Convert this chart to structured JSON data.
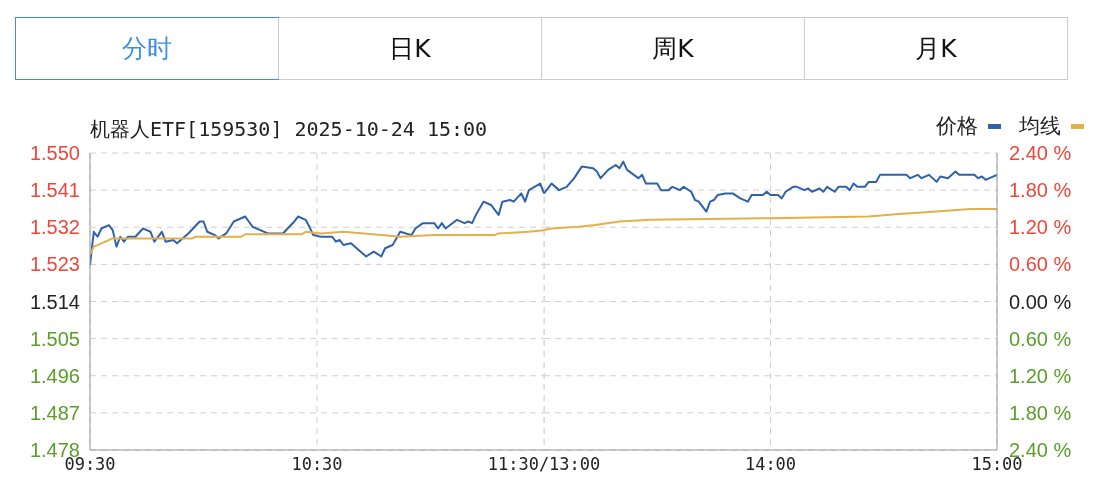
{
  "chart_data": [
    {
      "type": "line",
      "title": "机器人ETF[159530] 2025-10-24 15:00",
      "annotations": [
        "分时",
        "日K",
        "周K",
        "月K"
      ],
      "xlim": [
        "2025-10-24T09:30",
        "2025-10-24T11:30"
      ],
      "xticks": [
        {
          "value": "2025-10-24T09:30",
          "label": "09:30"
        },
        {
          "value": "2025-10-24T10:30",
          "label": "10:30"
        },
        {
          "value": "2025-10-24T11:30",
          "label": "11:30/13:00"
        }
      ],
      "ylim": [
        1.478,
        1.55
      ],
      "yticks": [
        1.478,
        1.487,
        1.496,
        1.505,
        1.514,
        1.523,
        1.532,
        1.541,
        {
          "value": 1.55,
          "label": "1.550"
        }
      ],
      "grid": true,
      "marker": "none",
      "line_style": "solid",
      "series": [
        {
          "color": "#2f62a8",
          "x": [
            "2025-10-24T09:30",
            "2025-10-24T09:31",
            "2025-10-24T09:32",
            "2025-10-24T09:33",
            "2025-10-24T09:35",
            "2025-10-24T09:36",
            "2025-10-24T09:37",
            "2025-10-24T09:38",
            "2025-10-24T09:39",
            "2025-10-24T09:40",
            "2025-10-24T09:41",
            "2025-10-24T09:42",
            "2025-10-24T09:44",
            "2025-10-24T09:45",
            "2025-10-24T09:46",
            "2025-10-24T09:47",
            "2025-10-24T09:49",
            "2025-10-24T09:50",
            "2025-10-24T09:52",
            "2025-10-24T09:53",
            "2025-10-24T09:56",
            "2025-10-24T09:59",
            "2025-10-24T10:00",
            "2025-10-24T10:01",
            "2025-10-24T10:03",
            "2025-10-24T10:04",
            "2025-10-24T10:06",
            "2025-10-24T10:08",
            "2025-10-24T10:11",
            "2025-10-24T10:13",
            "2025-10-24T10:15",
            "2025-10-24T10:17",
            "2025-10-24T10:21",
            "2025-10-24T10:24",
            "2025-10-24T10:25",
            "2025-10-24T10:27",
            "2025-10-24T10:28",
            "2025-10-24T10:29",
            "2025-10-24T10:31",
            "2025-10-24T10:34",
            "2025-10-24T10:35",
            "2025-10-24T10:36",
            "2025-10-24T10:37",
            "2025-10-24T10:39",
            "2025-10-24T10:41",
            "2025-10-24T10:43",
            "2025-10-24T10:45",
            "2025-10-24T10:47",
            "2025-10-24T10:48",
            "2025-10-24T10:50",
            "2025-10-24T10:52",
            "2025-10-24T10:55",
            "2025-10-24T10:56",
            "2025-10-24T10:58",
            "2025-10-24T11:01",
            "2025-10-24T11:02",
            "2025-10-24T11:03",
            "2025-10-24T11:04",
            "2025-10-24T11:07",
            "2025-10-24T11:09",
            "2025-10-24T11:10",
            "2025-10-24T11:11",
            "2025-10-24T11:12",
            "2025-10-24T11:14",
            "2025-10-24T11:16",
            "2025-10-24T11:18",
            "2025-10-24T11:19",
            "2025-10-24T11:21",
            "2025-10-24T11:22",
            "2025-10-24T11:24",
            "2025-10-24T11:25",
            "2025-10-24T11:26",
            "2025-10-24T11:29",
            "2025-10-24T11:30"
          ],
          "values": [
            1.5228,
            1.5309,
            1.5297,
            1.5317,
            1.5325,
            1.5313,
            1.5273,
            1.5297,
            1.5285,
            1.5297,
            1.5297,
            1.5297,
            1.5317,
            1.5313,
            1.5309,
            1.5285,
            1.5309,
            1.5285,
            1.5289,
            1.5281,
            1.5305,
            1.5334,
            1.5334,
            1.5309,
            1.5301,
            1.5293,
            1.5305,
            1.5334,
            1.5346,
            1.5321,
            1.5313,
            1.5305,
            1.5305,
            1.5334,
            1.5346,
            1.5338,
            1.5321,
            1.5301,
            1.5297,
            1.5297,
            1.5285,
            1.5289,
            1.5277,
            1.5281,
            1.5265,
            1.5249,
            1.5261,
            1.5249,
            1.5269,
            1.5277,
            1.5309,
            1.5301,
            1.5317,
            1.533,
            1.533,
            1.5317,
            1.533,
            1.5317,
            1.5338,
            1.533,
            1.5334,
            1.533,
            1.535,
            1.5382,
            1.5374,
            1.535,
            1.5382,
            1.5386,
            1.5382,
            1.5402,
            1.5382,
            1.541,
            1.5426,
            1.5402
          ]
        },
        {
          "color": "#e3b04b",
          "x": [
            "2025-10-24T09:30",
            "2025-10-24T09:31",
            "2025-10-24T09:33",
            "2025-10-24T09:36",
            "2025-10-24T09:57",
            "2025-10-24T09:58",
            "2025-10-24T10:10",
            "2025-10-24T10:11",
            "2025-10-24T10:26",
            "2025-10-24T10:27",
            "2025-10-24T10:31",
            "2025-10-24T10:37",
            "2025-10-24T10:47",
            "2025-10-24T10:52",
            "2025-10-24T11:01",
            "2025-10-24T11:17",
            "2025-10-24T11:18",
            "2025-10-24T11:26",
            "2025-10-24T11:30"
          ],
          "values": [
            1.5253,
            1.5273,
            1.5281,
            1.5293,
            1.5293,
            1.5297,
            1.5297,
            1.5303,
            1.5303,
            1.5309,
            1.5305,
            1.5309,
            1.5301,
            1.5297,
            1.5301,
            1.5301,
            1.5305,
            1.5309,
            1.5313
          ]
        }
      ]
    },
    {
      "type": "line",
      "xlim": [
        "2025-10-24T13:00",
        "2025-10-24T15:00"
      ],
      "xticks": [
        {
          "value": "2025-10-24T13:00",
          "label": null
        },
        {
          "value": "2025-10-24T14:00",
          "label": "14:00"
        },
        {
          "value": "2025-10-24T15:00",
          "label": "15:00"
        }
      ],
      "ylim": [
        1.478,
        1.55
      ],
      "y2lim": [
        -2.4,
        2.4
      ],
      "y2ticks": [
        {
          "value": -2.4,
          "label": "2.40 %"
        },
        {
          "value": -1.8,
          "label": "1.80 %"
        },
        {
          "value": -1.2,
          "label": "1.20 %"
        },
        {
          "value": -0.6,
          "label": "0.60 %"
        },
        {
          "value": 0,
          "label": "0.00 %"
        },
        {
          "value": 0.6,
          "label": "0.60 %"
        },
        {
          "value": 1.2,
          "label": "1.20 %"
        },
        {
          "value": 1.8,
          "label": "1.80 %"
        },
        {
          "value": 2.4,
          "label": "2.40 %"
        }
      ],
      "tick_labels": [
        "x",
        "y2"
      ],
      "grid": true,
      "legend": "top right",
      "marker": "none",
      "line_style": "solid",
      "series": [
        {
          "name": "价格",
          "color": "#2f62a8",
          "x": [
            "2025-10-24T13:00",
            "2025-10-24T13:02",
            "2025-10-24T13:04",
            "2025-10-24T13:06",
            "2025-10-24T13:08",
            "2025-10-24T13:10",
            "2025-10-24T13:13",
            "2025-10-24T13:14",
            "2025-10-24T13:15",
            "2025-10-24T13:17",
            "2025-10-24T13:19",
            "2025-10-24T13:20",
            "2025-10-24T13:21",
            "2025-10-24T13:22",
            "2025-10-24T13:25",
            "2025-10-24T13:26",
            "2025-10-24T13:27",
            "2025-10-24T13:30",
            "2025-10-24T13:31",
            "2025-10-24T13:33",
            "2025-10-24T13:34",
            "2025-10-24T13:36",
            "2025-10-24T13:37",
            "2025-10-24T13:39",
            "2025-10-24T13:40",
            "2025-10-24T13:41",
            "2025-10-24T13:43",
            "2025-10-24T13:44",
            "2025-10-24T13:45",
            "2025-10-24T13:46",
            "2025-10-24T13:48",
            "2025-10-24T13:50",
            "2025-10-24T13:52",
            "2025-10-24T13:54",
            "2025-10-24T13:55",
            "2025-10-24T13:58",
            "2025-10-24T13:59",
            "2025-10-24T14:00",
            "2025-10-24T14:02",
            "2025-10-24T14:03",
            "2025-10-24T14:04",
            "2025-10-24T14:06",
            "2025-10-24T14:07",
            "2025-10-24T14:09",
            "2025-10-24T14:10",
            "2025-10-24T14:11",
            "2025-10-24T14:13",
            "2025-10-24T14:14",
            "2025-10-24T14:15",
            "2025-10-24T14:17",
            "2025-10-24T14:18",
            "2025-10-24T14:20",
            "2025-10-24T14:21",
            "2025-10-24T14:22",
            "2025-10-24T14:23",
            "2025-10-24T14:25",
            "2025-10-24T14:26",
            "2025-10-24T14:28",
            "2025-10-24T14:29",
            "2025-10-24T14:36",
            "2025-10-24T14:37",
            "2025-10-24T14:39",
            "2025-10-24T14:40",
            "2025-10-24T14:42",
            "2025-10-24T14:44",
            "2025-10-24T14:45",
            "2025-10-24T14:47",
            "2025-10-24T14:49",
            "2025-10-24T14:50",
            "2025-10-24T14:54",
            "2025-10-24T14:55",
            "2025-10-24T14:56",
            "2025-10-24T14:57",
            "2025-10-24T14:58",
            "2025-10-24T15:00"
          ],
          "values": [
            1.5402,
            1.5426,
            1.541,
            1.5418,
            1.5439,
            1.5467,
            1.5463,
            1.5455,
            1.5439,
            1.5459,
            1.5471,
            1.5463,
            1.5479,
            1.5459,
            1.5439,
            1.5447,
            1.5426,
            1.5426,
            1.541,
            1.541,
            1.5418,
            1.541,
            1.5418,
            1.5406,
            1.5386,
            1.5382,
            1.5358,
            1.5382,
            1.5386,
            1.5398,
            1.5402,
            1.5402,
            1.539,
            1.5382,
            1.5398,
            1.5398,
            1.5406,
            1.5398,
            1.5398,
            1.539,
            1.5406,
            1.5418,
            1.5418,
            1.541,
            1.5414,
            1.5406,
            1.5414,
            1.5406,
            1.5418,
            1.5406,
            1.5418,
            1.5418,
            1.541,
            1.5426,
            1.5418,
            1.5418,
            1.543,
            1.543,
            1.5447,
            1.5447,
            1.5439,
            1.5447,
            1.5439,
            1.5447,
            1.543,
            1.5443,
            1.5439,
            1.5455,
            1.5447,
            1.5447,
            1.5439,
            1.5443,
            1.5435,
            1.5439,
            1.5447
          ]
        },
        {
          "name": "均线",
          "color": "#e3b04b",
          "x": [
            "2025-10-24T13:00",
            "2025-10-24T13:02",
            "2025-10-24T13:09",
            "2025-10-24T13:13",
            "2025-10-24T13:20",
            "2025-10-24T13:28",
            "2025-10-24T13:59",
            "2025-10-24T14:00",
            "2025-10-24T14:26",
            "2025-10-24T14:34",
            "2025-10-24T14:44",
            "2025-10-24T14:53",
            "2025-10-24T15:00"
          ],
          "values": [
            1.5313,
            1.5317,
            1.5321,
            1.5325,
            1.5334,
            1.5338,
            1.5342,
            1.5342,
            1.5346,
            1.5352,
            1.5358,
            1.5364,
            1.5364
          ]
        }
      ]
    }
  ]
}
